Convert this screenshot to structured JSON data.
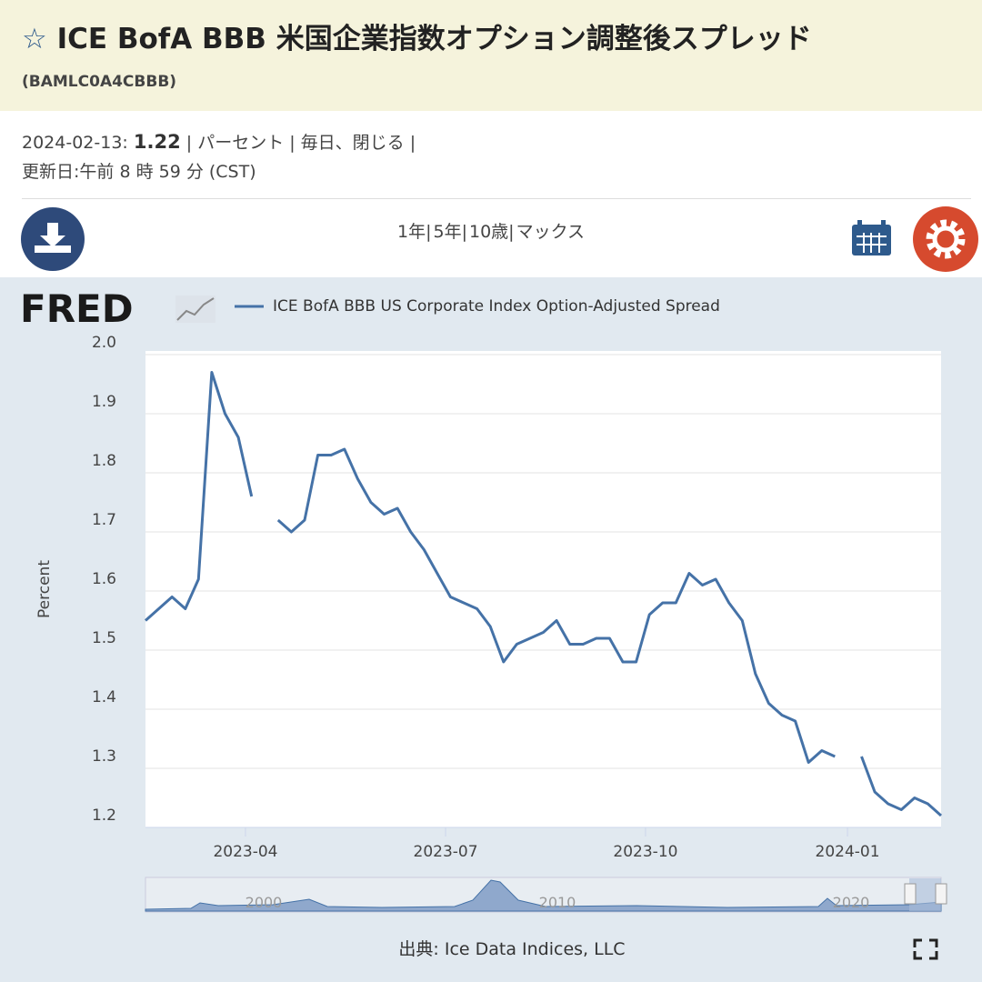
{
  "header": {
    "title": "ICE BofA BBB 米国企業指数オプション調整後スプレッド",
    "series_id": "(BAMLC0A4CBBB)"
  },
  "info": {
    "date": "2024-02-13:",
    "value": "1.22",
    "rest": "| パーセント | 毎日、閉じる | 更新日:午前 8 時 59 分 (CST)"
  },
  "ranges": [
    "1年|",
    "5年|",
    "10歳|",
    "マックス"
  ],
  "logo": "FRED",
  "chart_data": {
    "type": "line",
    "series": [
      {
        "name": "ICE BofA BBB US Corporate Index Option-Adjusted Spread",
        "color": "#4572a7",
        "values": [
          1.55,
          1.57,
          1.59,
          1.57,
          1.62,
          1.97,
          1.9,
          1.86,
          1.76,
          null,
          1.72,
          1.7,
          1.72,
          1.83,
          1.83,
          1.84,
          1.79,
          1.75,
          1.73,
          1.74,
          1.7,
          1.67,
          1.63,
          1.59,
          1.58,
          1.57,
          1.54,
          1.48,
          1.51,
          1.52,
          1.53,
          1.55,
          1.51,
          1.51,
          1.52,
          1.52,
          1.48,
          1.48,
          1.56,
          1.58,
          1.58,
          1.63,
          1.61,
          1.62,
          1.58,
          1.55,
          1.46,
          1.41,
          1.39,
          1.38,
          1.31,
          1.33,
          1.32,
          null,
          1.32,
          1.26,
          1.24,
          1.23,
          1.25,
          1.24,
          1.22
        ]
      }
    ],
    "y_label": "Percent",
    "ylim": [
      1.2,
      2.0
    ],
    "yticks": [
      1.2,
      1.3,
      1.4,
      1.5,
      1.6,
      1.7,
      1.8,
      1.9,
      {
        "value": 2,
        "label": "2.0"
      }
    ],
    "xlim": [
      0,
      60
    ],
    "xticks": [
      {
        "value": 7.54,
        "label": "2023-04"
      },
      {
        "value": 22.63,
        "label": "2023-07"
      },
      {
        "value": 37.71,
        "label": "2023-10"
      },
      {
        "value": 52.94,
        "label": "2024-01"
      }
    ],
    "grid": true,
    "navigator_labels": [
      "2000",
      "2010",
      "2020"
    ]
  },
  "source": "出典: Ice Data Indices, LLC"
}
